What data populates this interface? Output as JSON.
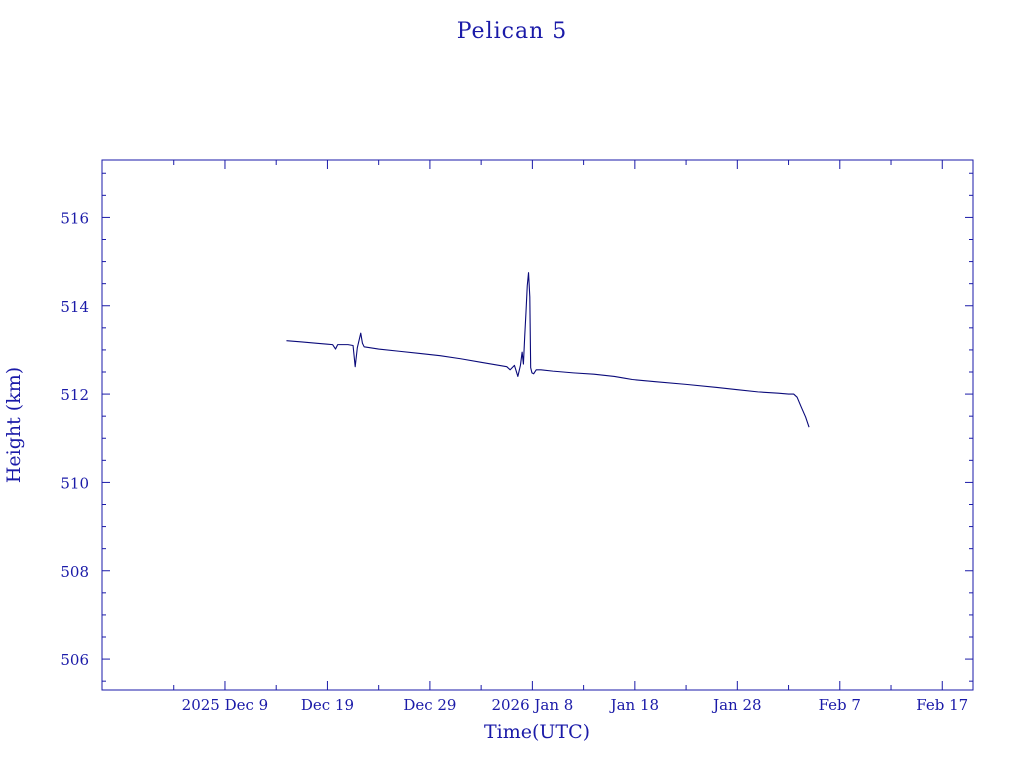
{
  "chart_data": {
    "type": "line",
    "title": "Pelican 5",
    "xlabel": "Time(UTC)",
    "ylabel": "Height (km)",
    "colors": {
      "ink": "#1a1aa8",
      "line": "#0a0a7a",
      "background": "#ffffff"
    },
    "grid": false,
    "x_is_date": true,
    "xlim": [
      "2025-11-27",
      "2026-02-20"
    ],
    "ylim": [
      505.3,
      517.3
    ],
    "x_ticks": [
      {
        "date": "2025-12-09",
        "label": "2025 Dec  9"
      },
      {
        "date": "2025-12-19",
        "label": "Dec 19"
      },
      {
        "date": "2025-12-29",
        "label": "Dec 29"
      },
      {
        "date": "2026-01-08",
        "label": "2026 Jan  8"
      },
      {
        "date": "2026-01-18",
        "label": "Jan 18"
      },
      {
        "date": "2026-01-28",
        "label": "Jan 28"
      },
      {
        "date": "2026-02-07",
        "label": "Feb  7"
      },
      {
        "date": "2026-02-17",
        "label": "Feb 17"
      }
    ],
    "y_ticks": [
      {
        "value": 506,
        "label": "506"
      },
      {
        "value": 508,
        "label": "508"
      },
      {
        "value": 510,
        "label": "510"
      },
      {
        "value": 512,
        "label": "512"
      },
      {
        "value": 514,
        "label": "514"
      },
      {
        "value": 516,
        "label": "516"
      }
    ],
    "series": [
      {
        "x": [
          "2025-12-15T00:00",
          "2025-12-16T12:00",
          "2025-12-18T00:00",
          "2025-12-19T00:00",
          "2025-12-19T12:00",
          "2025-12-19T19:00",
          "2025-12-20T00:00",
          "2025-12-21T00:00",
          "2025-12-21T12:00",
          "2025-12-21T17:00",
          "2025-12-21T22:00",
          "2025-12-22T06:00",
          "2025-12-22T10:00",
          "2025-12-22T14:00",
          "2025-12-24T00:00",
          "2025-12-26T00:00",
          "2025-12-28T00:00",
          "2025-12-30T00:00",
          "2026-01-01T00:00",
          "2026-01-03T00:00",
          "2026-01-04T12:00",
          "2026-01-05T00:00",
          "2026-01-05T12:00",
          "2026-01-05T20:00",
          "2026-01-06T06:00",
          "2026-01-06T14:00",
          "2026-01-06T20:00",
          "2026-01-07T00:00",
          "2026-01-07T03:00",
          "2026-01-07T06:00",
          "2026-01-07T09:00",
          "2026-01-07T12:00",
          "2026-01-07T15:00",
          "2026-01-07T18:00",
          "2026-01-07T20:00",
          "2026-01-07T23:00",
          "2026-01-08T03:00",
          "2026-01-08T09:00",
          "2026-01-08T20:00",
          "2026-01-10T00:00",
          "2026-01-12T00:00",
          "2026-01-14T00:00",
          "2026-01-16T00:00",
          "2026-01-17T00:00",
          "2026-01-17T18:00",
          "2026-01-20T00:00",
          "2026-01-23T00:00",
          "2026-01-26T00:00",
          "2026-01-28T00:00",
          "2026-01-30T00:00",
          "2026-02-01T00:00",
          "2026-02-02T00:00",
          "2026-02-02T12:00",
          "2026-02-02T20:00",
          "2026-02-03T06:00",
          "2026-02-03T16:00",
          "2026-02-04T00:00"
        ],
        "y": [
          513.21,
          513.18,
          513.15,
          513.13,
          513.12,
          513.02,
          513.12,
          513.12,
          513.1,
          512.62,
          513.05,
          513.38,
          513.15,
          513.07,
          513.02,
          512.97,
          512.92,
          512.87,
          512.8,
          512.72,
          512.66,
          512.64,
          512.62,
          512.55,
          512.65,
          512.4,
          512.65,
          512.95,
          512.68,
          513.3,
          513.85,
          514.45,
          514.75,
          514.2,
          512.6,
          512.48,
          512.46,
          512.55,
          512.55,
          512.52,
          512.48,
          512.45,
          512.4,
          512.36,
          512.33,
          512.28,
          512.22,
          512.15,
          512.1,
          512.05,
          512.02,
          512.0,
          512.0,
          511.93,
          511.7,
          511.48,
          511.25
        ]
      }
    ]
  }
}
